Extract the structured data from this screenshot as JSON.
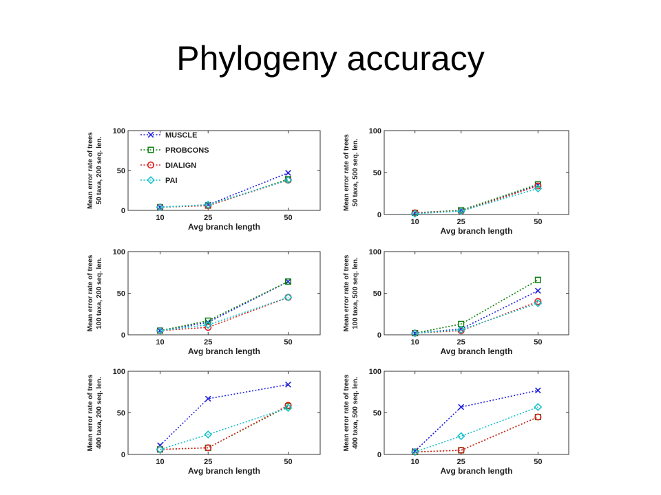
{
  "slide": {
    "title": "Phylogeny accuracy"
  },
  "legend": [
    {
      "label": "MUSCLE",
      "color": "#2020e0",
      "marker": "x"
    },
    {
      "label": "PROBCONS",
      "color": "#108010",
      "marker": "square"
    },
    {
      "label": "DIALIGN",
      "color": "#e02020",
      "marker": "circle"
    },
    {
      "label": "PAI",
      "color": "#10c0c8",
      "marker": "diamond"
    }
  ],
  "chart_data": [
    {
      "type": "line",
      "xlabel": "Avg branch length",
      "ylabel": [
        "Mean error rate of trees",
        "50 taxa, 200 seq. len."
      ],
      "x": [
        10,
        25,
        50
      ],
      "ylim": [
        0,
        100
      ],
      "yticks": [
        0,
        50,
        100
      ],
      "legend": true,
      "series": [
        {
          "name": "MUSCLE",
          "values": [
            4,
            7,
            47
          ]
        },
        {
          "name": "PROBCONS",
          "values": [
            4,
            6,
            39
          ]
        },
        {
          "name": "DIALIGN",
          "values": [
            4,
            6,
            38
          ]
        },
        {
          "name": "PAI",
          "values": [
            4,
            7,
            38
          ]
        }
      ]
    },
    {
      "type": "line",
      "xlabel": "Avg branch length",
      "ylabel": [
        "Mean error rate of trees",
        "50 taxa, 500 seq. len."
      ],
      "x": [
        10,
        25,
        50
      ],
      "ylim": [
        0,
        100
      ],
      "yticks": [
        0,
        50,
        100
      ],
      "legend": false,
      "series": [
        {
          "name": "MUSCLE",
          "values": [
            2,
            5,
            35
          ]
        },
        {
          "name": "PROBCONS",
          "values": [
            2,
            5,
            36
          ]
        },
        {
          "name": "DIALIGN",
          "values": [
            2,
            4,
            34
          ]
        },
        {
          "name": "PAI",
          "values": [
            1,
            4,
            31
          ]
        }
      ]
    },
    {
      "type": "line",
      "xlabel": "Avg branch length",
      "ylabel": [
        "Mean error rate of trees",
        "100 taxa, 200 seq. len."
      ],
      "x": [
        10,
        25,
        50
      ],
      "ylim": [
        0,
        100
      ],
      "yticks": [
        0,
        50,
        100
      ],
      "legend": false,
      "series": [
        {
          "name": "MUSCLE",
          "values": [
            5,
            15,
            64
          ]
        },
        {
          "name": "PROBCONS",
          "values": [
            5,
            17,
            64
          ]
        },
        {
          "name": "DIALIGN",
          "values": [
            5,
            9,
            45
          ]
        },
        {
          "name": "PAI",
          "values": [
            5,
            12,
            45
          ]
        }
      ]
    },
    {
      "type": "line",
      "xlabel": "Avg branch length",
      "ylabel": [
        "Mean error rate of trees",
        "100 taxa, 500 seq. len."
      ],
      "x": [
        10,
        25,
        50
      ],
      "ylim": [
        0,
        100
      ],
      "yticks": [
        0,
        50,
        100
      ],
      "legend": false,
      "series": [
        {
          "name": "MUSCLE",
          "values": [
            2,
            7,
            53
          ]
        },
        {
          "name": "PROBCONS",
          "values": [
            2,
            13,
            66
          ]
        },
        {
          "name": "DIALIGN",
          "values": [
            2,
            5,
            40
          ]
        },
        {
          "name": "PAI",
          "values": [
            2,
            6,
            38
          ]
        }
      ]
    },
    {
      "type": "line",
      "xlabel": "Avg branch length",
      "ylabel": [
        "Mean error rate of trees",
        "400 taxa, 200 seq. len."
      ],
      "x": [
        10,
        25,
        50
      ],
      "ylim": [
        0,
        100
      ],
      "yticks": [
        0,
        50,
        100
      ],
      "legend": false,
      "series": [
        {
          "name": "MUSCLE",
          "values": [
            11,
            67,
            84
          ]
        },
        {
          "name": "PROBCONS",
          "values": [
            6,
            8,
            58
          ]
        },
        {
          "name": "DIALIGN",
          "values": [
            6,
            8,
            59
          ]
        },
        {
          "name": "PAI",
          "values": [
            6,
            24,
            56
          ]
        }
      ]
    },
    {
      "type": "line",
      "xlabel": "Avg branch length",
      "ylabel": [
        "Mean error rate of trees",
        "400 taxa, 500 seq. len."
      ],
      "x": [
        10,
        25,
        50
      ],
      "ylim": [
        0,
        100
      ],
      "yticks": [
        0,
        50,
        100
      ],
      "legend": false,
      "series": [
        {
          "name": "MUSCLE",
          "values": [
            4,
            57,
            77
          ]
        },
        {
          "name": "PROBCONS",
          "values": [
            3,
            5,
            45
          ]
        },
        {
          "name": "DIALIGN",
          "values": [
            3,
            5,
            45
          ]
        },
        {
          "name": "PAI",
          "values": [
            3,
            22,
            57
          ]
        }
      ]
    }
  ]
}
